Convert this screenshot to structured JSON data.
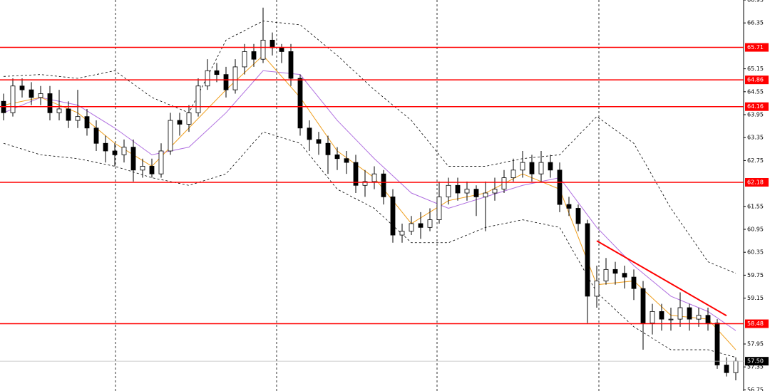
{
  "chart_data": {
    "type": "candlestick",
    "open": [
      64.3,
      64.0,
      64.7,
      64.6,
      64.4,
      64.5,
      64.0,
      64.1,
      63.8,
      63.9,
      63.6,
      63.2,
      63.0,
      62.9,
      63.1,
      62.5,
      62.6,
      62.4,
      63.0,
      63.8,
      63.7,
      64.0,
      64.7,
      65.1,
      65.0,
      64.6,
      65.2,
      65.6,
      65.4,
      65.9,
      65.7,
      65.6,
      64.9,
      63.6,
      63.3,
      63.2,
      62.9,
      62.8,
      62.7,
      62.1,
      62.2,
      62.4,
      61.8,
      60.8,
      60.9,
      61.1,
      61.0,
      61.2,
      61.8,
      62.1,
      61.9,
      62.0,
      61.8,
      61.9,
      62.0,
      62.3,
      62.5,
      62.7,
      62.4,
      62.7,
      62.5,
      61.6,
      61.5,
      61.1,
      59.2,
      59.6,
      59.9,
      59.8,
      59.7,
      59.4,
      58.5,
      58.8,
      58.6,
      58.6,
      58.9,
      58.6,
      58.7,
      58.5,
      57.4,
      57.2
    ],
    "high": [
      64.5,
      64.9,
      64.9,
      64.8,
      64.7,
      64.7,
      64.6,
      64.3,
      64.6,
      64.1,
      63.8,
      63.4,
      63.2,
      63.3,
      63.3,
      62.8,
      62.8,
      63.2,
      64.0,
      64.0,
      64.2,
      64.9,
      65.4,
      65.3,
      65.2,
      65.4,
      65.8,
      65.8,
      66.75,
      66.1,
      65.8,
      65.8,
      65.0,
      63.8,
      63.5,
      63.4,
      63.1,
      63.0,
      62.9,
      62.5,
      62.6,
      62.5,
      62.0,
      61.1,
      61.3,
      61.4,
      61.5,
      62.2,
      62.3,
      62.3,
      62.2,
      62.1,
      62.2,
      62.3,
      62.5,
      62.8,
      63.0,
      62.9,
      63.0,
      62.9,
      62.7,
      61.8,
      61.6,
      61.2,
      60.0,
      60.2,
      60.1,
      60.0,
      59.9,
      59.6,
      59.0,
      59.0,
      58.9,
      59.3,
      59.0,
      58.9,
      58.9,
      58.6,
      57.6,
      57.6
    ],
    "low": [
      63.8,
      63.9,
      64.4,
      64.2,
      64.2,
      63.8,
      63.8,
      63.6,
      63.6,
      63.4,
      63.0,
      62.7,
      62.6,
      62.7,
      62.2,
      62.3,
      62.3,
      62.3,
      62.9,
      63.4,
      63.5,
      63.9,
      64.6,
      64.8,
      64.4,
      64.5,
      65.0,
      65.2,
      65.3,
      65.5,
      65.3,
      64.7,
      63.4,
      63.0,
      62.9,
      62.4,
      62.5,
      62.4,
      61.9,
      61.8,
      62.0,
      61.6,
      60.6,
      60.6,
      60.8,
      60.7,
      60.9,
      61.1,
      61.6,
      61.7,
      61.7,
      61.3,
      60.9,
      61.7,
      61.9,
      62.2,
      62.3,
      62.2,
      62.2,
      62.3,
      61.4,
      61.3,
      60.9,
      58.5,
      58.9,
      59.5,
      59.5,
      59.4,
      59.1,
      57.8,
      58.2,
      58.3,
      58.3,
      58.4,
      58.3,
      58.4,
      58.3,
      57.3,
      57.1,
      57.0
    ],
    "close": [
      64.0,
      64.7,
      64.6,
      64.4,
      64.5,
      64.0,
      64.1,
      63.8,
      63.9,
      63.6,
      63.2,
      63.0,
      62.9,
      63.1,
      62.5,
      62.6,
      62.4,
      63.0,
      63.8,
      63.7,
      64.0,
      64.7,
      65.1,
      65.0,
      64.6,
      65.2,
      65.6,
      65.4,
      65.9,
      65.7,
      65.6,
      64.9,
      63.6,
      63.3,
      63.2,
      62.9,
      62.8,
      62.7,
      62.1,
      62.2,
      62.4,
      61.8,
      60.8,
      60.9,
      61.1,
      61.0,
      61.2,
      61.8,
      62.1,
      61.9,
      62.0,
      61.8,
      61.9,
      62.0,
      62.3,
      62.5,
      62.7,
      62.4,
      62.7,
      62.5,
      61.6,
      61.5,
      61.1,
      59.2,
      59.6,
      59.9,
      59.8,
      59.7,
      59.4,
      58.5,
      58.8,
      58.6,
      58.6,
      58.9,
      58.6,
      58.7,
      58.5,
      57.4,
      57.2,
      57.5
    ],
    "overlay_x": [
      0,
      4,
      8,
      12,
      16,
      20,
      24,
      28,
      32,
      36,
      40,
      44,
      48,
      52,
      56,
      60,
      64,
      68,
      72,
      76,
      79
    ],
    "overlays": [
      {
        "color": "#000000",
        "dashed": true,
        "values": [
          64.95,
          65.0,
          64.9,
          65.1,
          64.4,
          64.0,
          65.9,
          66.4,
          66.3,
          65.5,
          64.6,
          63.8,
          62.6,
          62.6,
          62.8,
          62.9,
          63.9,
          63.2,
          61.5,
          60.1,
          59.8
        ]
      },
      {
        "color": "#000000",
        "dashed": true,
        "values": [
          63.2,
          62.9,
          62.8,
          62.6,
          62.3,
          62.1,
          62.4,
          63.5,
          63.2,
          62.0,
          61.5,
          60.6,
          60.6,
          61.0,
          61.2,
          61.0,
          59.3,
          58.4,
          57.8,
          57.8,
          57.6
        ]
      },
      {
        "color": "#b070e0",
        "dashed": false,
        "values": [
          64.0,
          64.4,
          64.2,
          63.6,
          62.9,
          63.1,
          64.0,
          65.1,
          65.0,
          63.8,
          62.8,
          61.9,
          61.5,
          61.8,
          62.1,
          62.3,
          61.0,
          60.0,
          59.2,
          58.8,
          58.3
        ]
      },
      {
        "color": "#f0a020",
        "dashed": false,
        "values": [
          64.2,
          64.4,
          64.0,
          63.2,
          62.6,
          63.6,
          64.6,
          65.5,
          64.4,
          63.0,
          62.3,
          61.1,
          61.7,
          61.9,
          62.4,
          62.0,
          59.5,
          59.6,
          58.7,
          58.6,
          57.8
        ]
      }
    ],
    "levels": [
      65.71,
      64.86,
      64.16,
      62.18,
      58.48
    ],
    "level_color": "#ff0000",
    "trendline": {
      "x": [
        64,
        78
      ],
      "values": [
        60.65,
        58.69
      ],
      "color": "#ff0000"
    },
    "current_price": {
      "value": 57.5,
      "label": "57.50"
    },
    "ylim": [
      56.72,
      66.95
    ],
    "yticks": [
      66.95,
      66.35,
      65.15,
      64.55,
      63.95,
      63.35,
      62.75,
      61.55,
      60.95,
      60.35,
      59.75,
      59.15,
      57.95,
      57.35,
      56.75
    ]
  }
}
